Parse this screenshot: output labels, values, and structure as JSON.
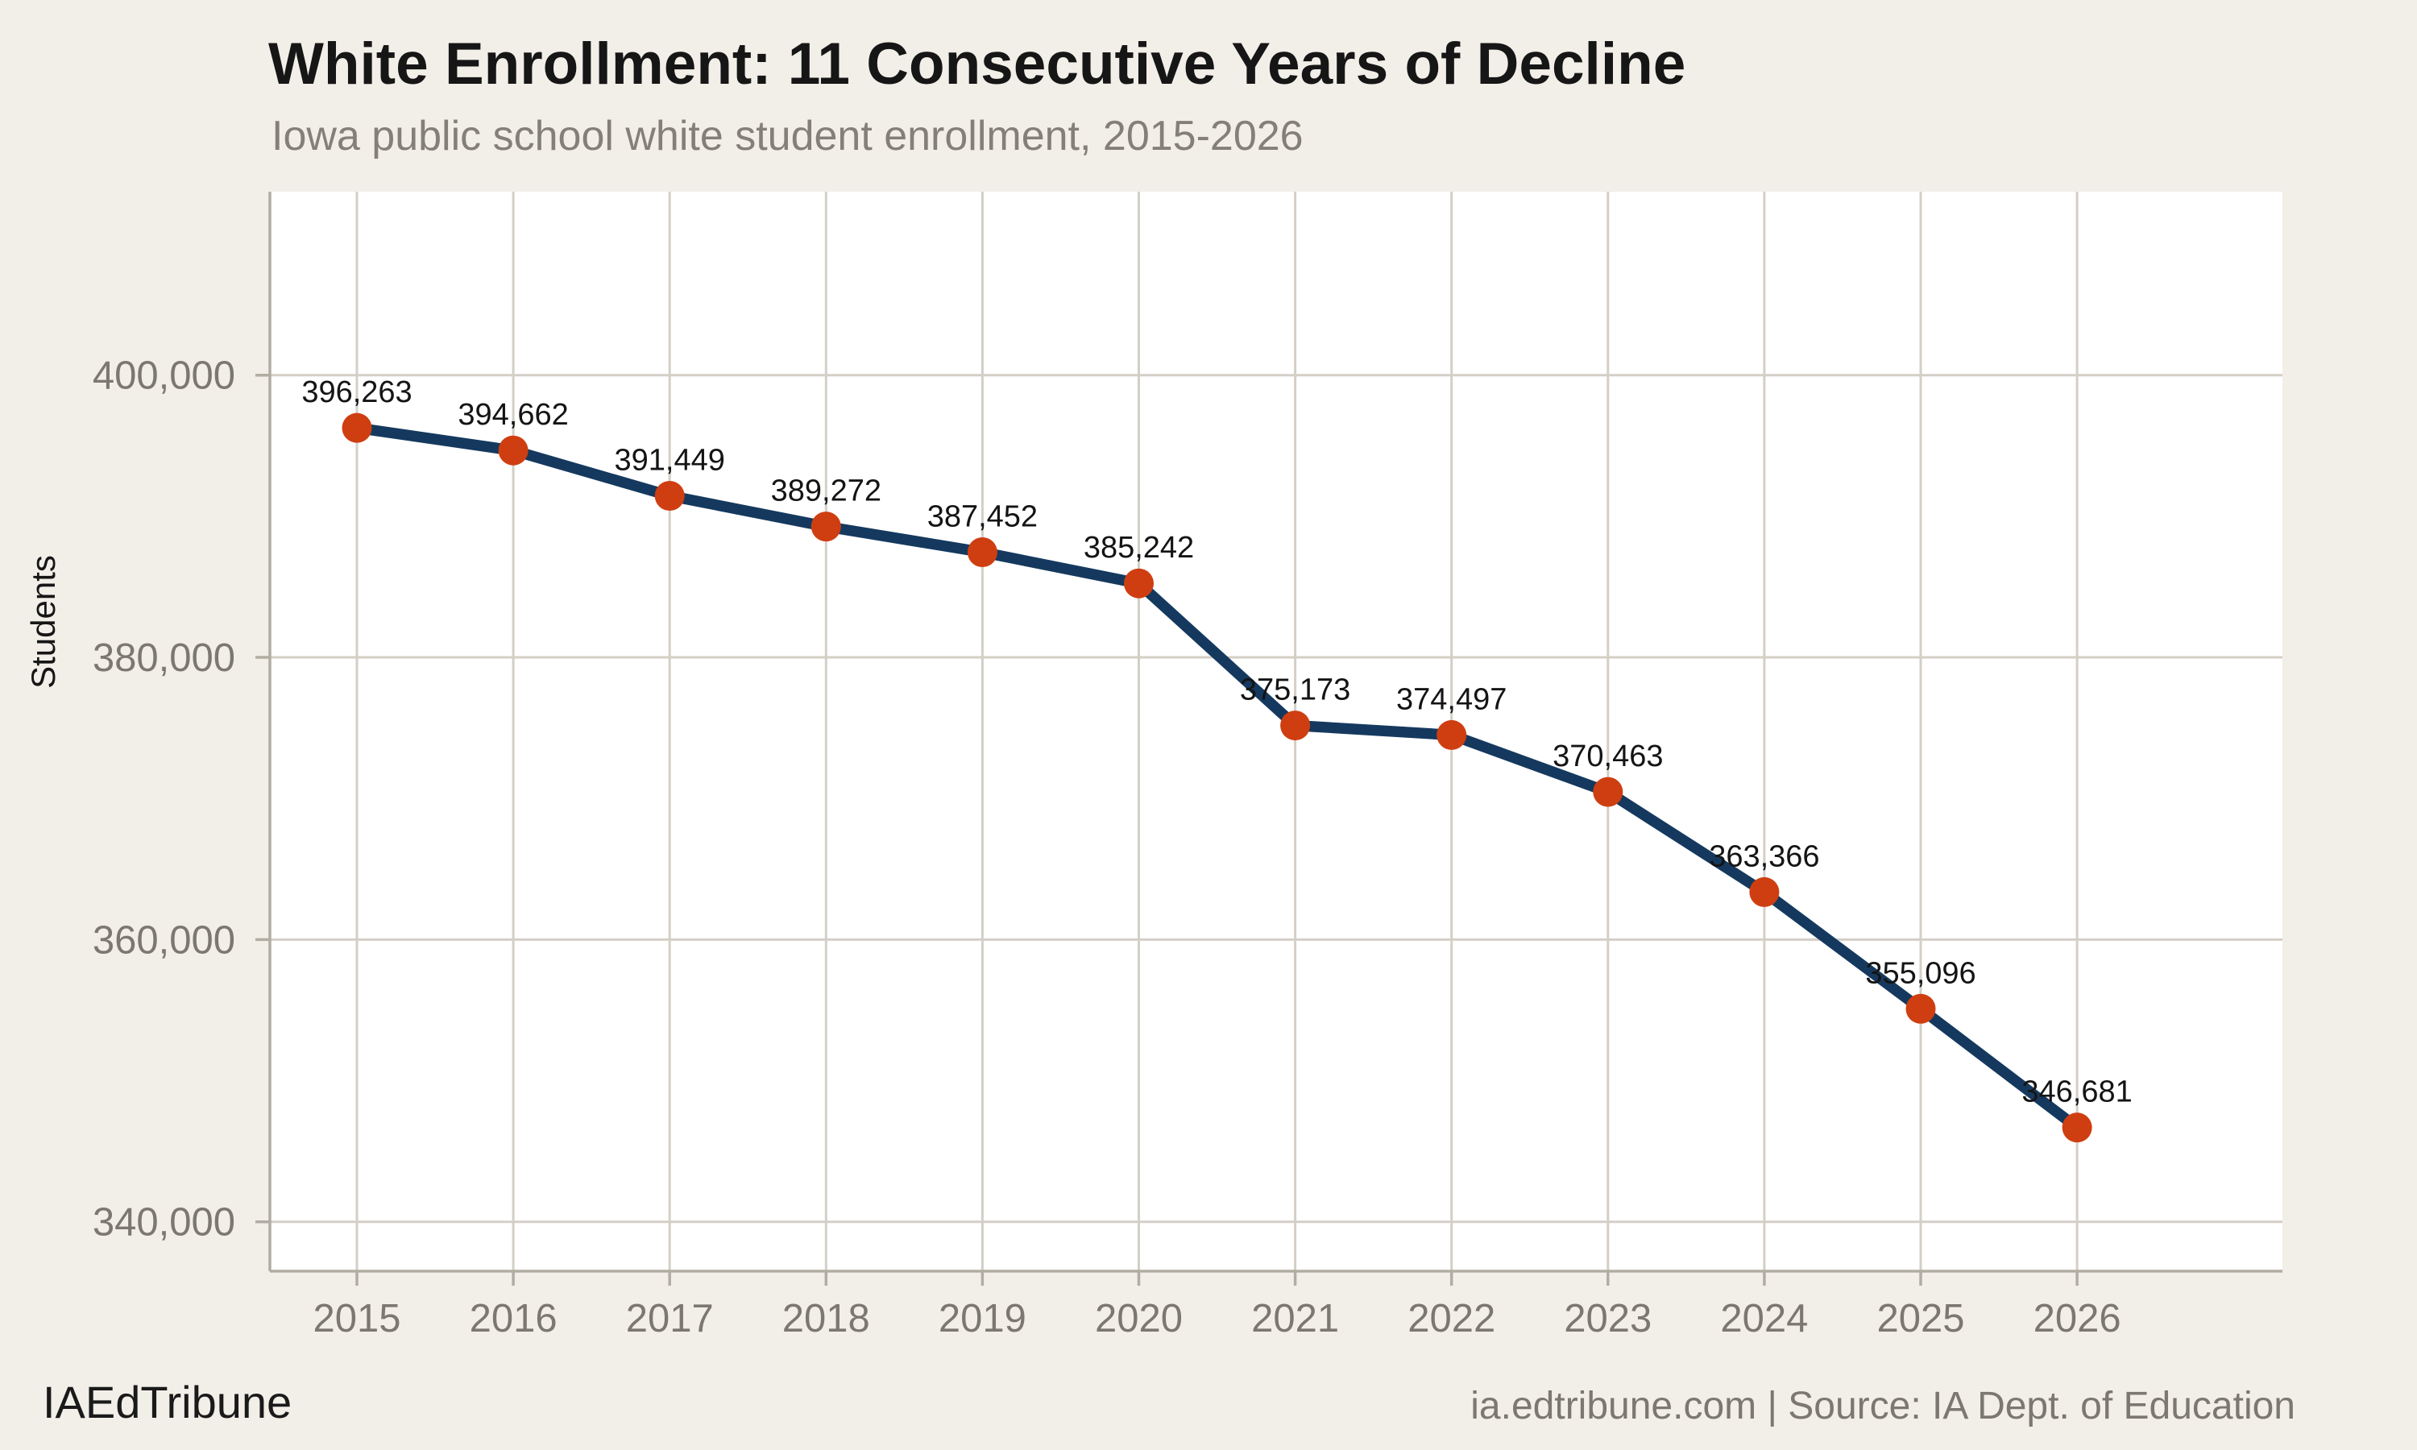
{
  "page": {
    "background": "#f2efe8"
  },
  "footer": {
    "brand": "IAEdTribune",
    "source": "ia.edtribune.com | Source: IA Dept. of Education"
  },
  "chart_data": {
    "type": "line",
    "title": "White Enrollment: 11 Consecutive Years of Decline",
    "subtitle": "Iowa public school white student enrollment, 2015-2026",
    "x": [
      2015,
      2016,
      2017,
      2018,
      2019,
      2020,
      2021,
      2022,
      2023,
      2024,
      2025,
      2026
    ],
    "values": [
      396263,
      394662,
      391449,
      389272,
      387452,
      385242,
      375173,
      374497,
      370463,
      363366,
      355096,
      346681
    ],
    "point_labels": [
      "396,263",
      "394,662",
      "391,449",
      "389,272",
      "387,452",
      "385,242",
      "375,173",
      "374,497",
      "370,463",
      "363,366",
      "355,096",
      "346,681"
    ],
    "xlabel": "",
    "ylabel": "Students",
    "yticks": [
      340000,
      360000,
      380000,
      400000
    ],
    "ytick_labels": [
      "340,000",
      "360,000",
      "380,000",
      "400,000"
    ],
    "ylim": [
      336500,
      413000
    ],
    "grid": true,
    "legend_position": "none",
    "colors": {
      "line": "#15395e",
      "point": "#cf3e11",
      "background": "#f2efe8",
      "panel": "#ffffff",
      "grid": "#d4cfc6",
      "axis": "#b2ada3",
      "tick_text": "#7c7870",
      "title": "#161616",
      "subtitle": "#847f77",
      "label": "#141414"
    }
  }
}
